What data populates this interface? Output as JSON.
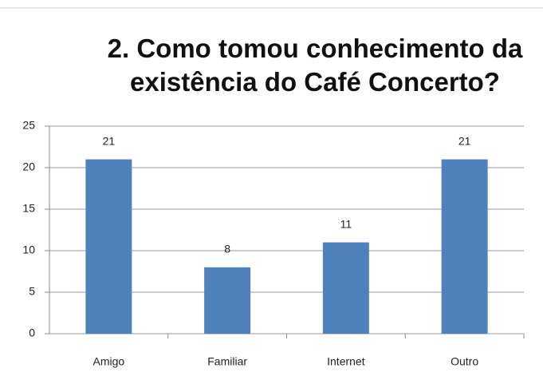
{
  "chart_data": {
    "type": "bar",
    "title": "2. Como tomou conhecimento da existência do Café Concerto?",
    "categories": [
      "Amigo",
      "Familiar",
      "Internet",
      "Outro"
    ],
    "values": [
      21,
      8,
      11,
      21
    ],
    "color": "#4f81bd",
    "ylim": [
      0,
      25
    ],
    "yticks": [
      0,
      5,
      10,
      15,
      20,
      25
    ],
    "grid": true
  }
}
